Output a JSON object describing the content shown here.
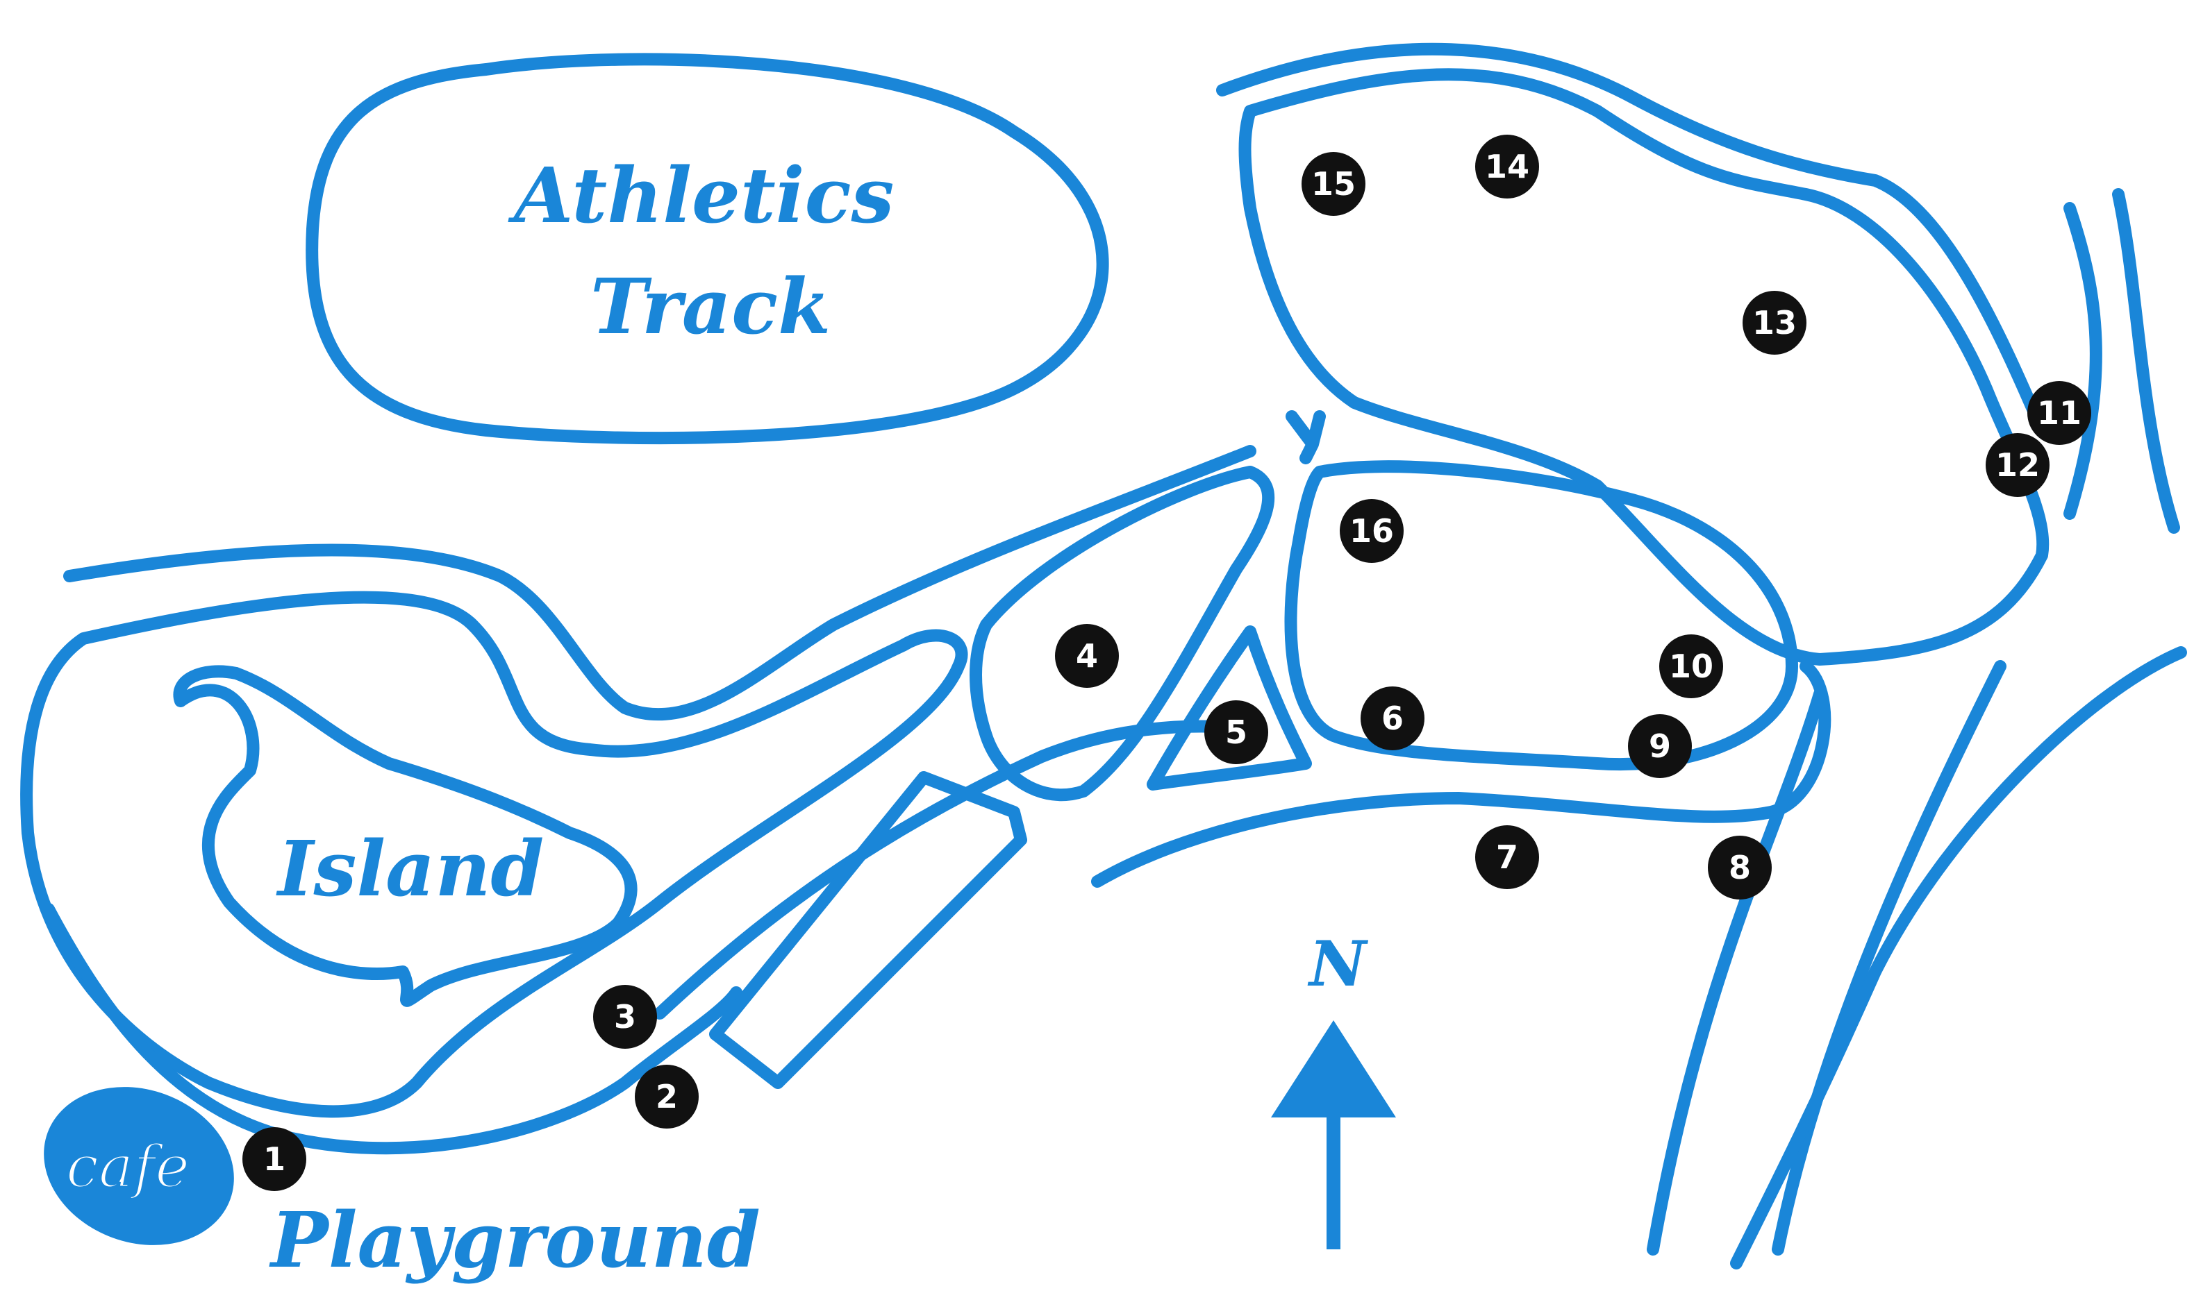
{
  "labels": {
    "athletics_track_line1": "Athletics",
    "athletics_track_line2": "Track",
    "island": "Island",
    "cafe": "cafe",
    "playground": "Playground",
    "north": "N"
  },
  "markers": [
    "1",
    "2",
    "3",
    "4",
    "5",
    "6",
    "7",
    "8",
    "9",
    "10",
    "11",
    "12",
    "13",
    "14",
    "15",
    "16"
  ],
  "colors": {
    "path": "#1a86d8",
    "marker": "#111111",
    "marker_text": "#ffffff",
    "background": "#ffffff"
  }
}
